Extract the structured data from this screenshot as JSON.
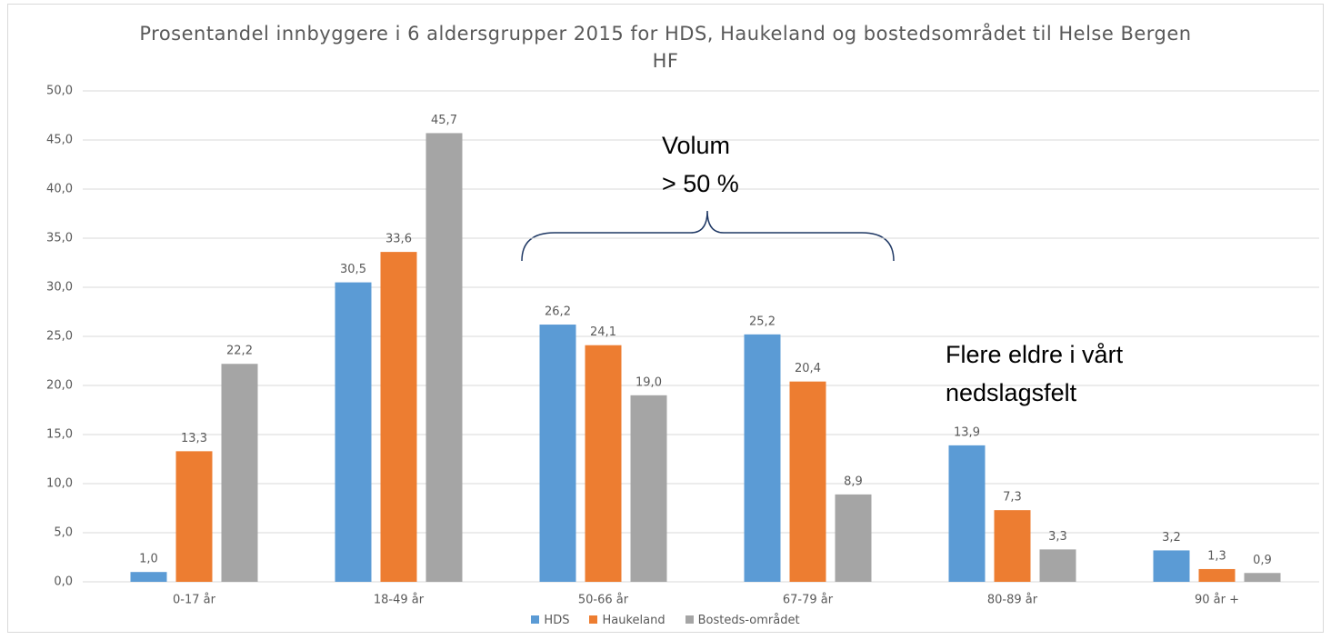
{
  "chart_data": {
    "type": "bar",
    "title": "Prosentandel innbyggere i 6 aldersgrupper 2015 for HDS, Haukeland og bostedsområdet til Helse Bergen HF",
    "categories": [
      "0-17 år",
      "18-49 år",
      "50-66 år",
      "67-79 år",
      "80-89 år",
      "90 år +"
    ],
    "series": [
      {
        "name": "HDS",
        "color": "#5b9bd5",
        "values": [
          1.0,
          30.5,
          26.2,
          25.2,
          13.9,
          3.2
        ],
        "value_labels": [
          "1,0",
          "30,5",
          "26,2",
          "25,2",
          "13,9",
          "3,2"
        ]
      },
      {
        "name": "Haukeland",
        "color": "#ed7d31",
        "values": [
          13.3,
          33.6,
          24.1,
          20.4,
          7.3,
          1.3
        ],
        "value_labels": [
          "13,3",
          "33,6",
          "24,1",
          "20,4",
          "7,3",
          "1,3"
        ]
      },
      {
        "name": "Bosteds-området",
        "color": "#a5a5a5",
        "values": [
          22.2,
          45.7,
          19.0,
          8.9,
          3.3,
          0.9
        ],
        "value_labels": [
          "22,2",
          "45,7",
          "19,0",
          "8,9",
          "3,3",
          "0,9"
        ]
      }
    ],
    "ylim": [
      0,
      50
    ],
    "yticks": [
      {
        "value": 0,
        "label": "0,0"
      },
      {
        "value": 5,
        "label": "5,0"
      },
      {
        "value": 10,
        "label": "10,0"
      },
      {
        "value": 15,
        "label": "15,0"
      },
      {
        "value": 20,
        "label": "20,0"
      },
      {
        "value": 25,
        "label": "25,0"
      },
      {
        "value": 30,
        "label": "30,0"
      },
      {
        "value": 35,
        "label": "35,0"
      },
      {
        "value": 40,
        "label": "40,0"
      },
      {
        "value": 45,
        "label": "45,0"
      },
      {
        "value": 50,
        "label": "50,0"
      }
    ],
    "grid": true,
    "legend": "bottom",
    "annotations": [
      [
        "Volum",
        "> 50 %"
      ],
      [
        "Flere eldre i vårt",
        "nedslagsfelt"
      ]
    ]
  }
}
